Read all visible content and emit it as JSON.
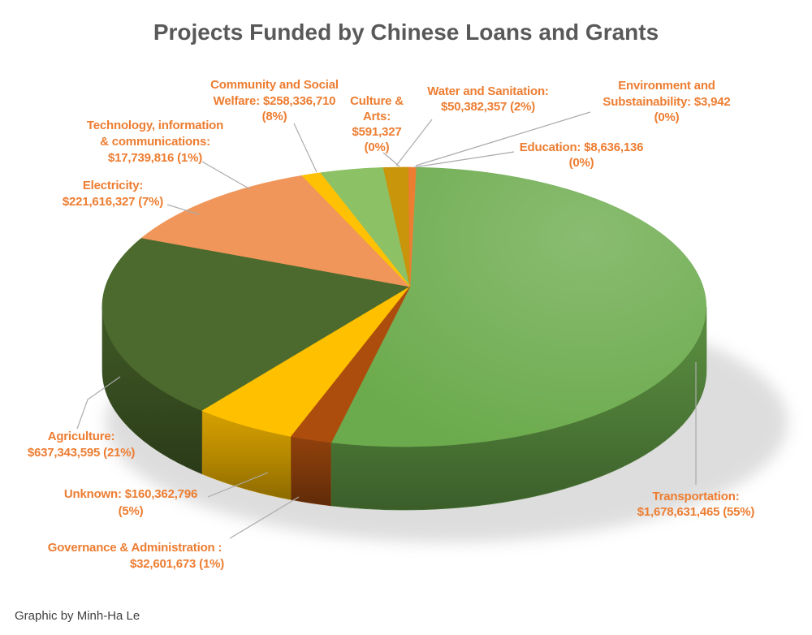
{
  "title": "Projects Funded by Chinese Loans and Grants",
  "credit": "Graphic by Minh-Ha Le",
  "colors": {
    "title_text": "#595959",
    "label_text": "#ED7D31",
    "leader_line": "#ABABAB",
    "credit_text": "#3F3F3F",
    "shadow": "#C8C8C8"
  },
  "chart_data": {
    "type": "pie",
    "style": "3d",
    "title": "Projects Funded by Chinese Loans and Grants",
    "unit": "USD",
    "legend_position": "none",
    "segments": [
      {
        "id": "transportation",
        "name": "Transportation",
        "amount": "$1,678,631,465",
        "value": 1678631465,
        "percent": "55%",
        "color": "#6CAB4D",
        "label_lines": [
          "Transportation:",
          "$1,678,631,465 (55%)"
        ]
      },
      {
        "id": "agriculture",
        "name": "Agriculture",
        "amount": "$637,343,595",
        "value": 637343595,
        "percent": "21%",
        "color": "#4C6A2D",
        "label_lines": [
          "Agriculture:",
          "$637,343,595 (21%)"
        ]
      },
      {
        "id": "community",
        "name": "Community and Social Welfare",
        "amount": "$258,336,710",
        "value": 258336710,
        "percent": "8%",
        "color": "#8DC166",
        "label_lines": [
          "Community and Social",
          "Welfare: $258,336,710",
          "(8%)"
        ]
      },
      {
        "id": "electricity",
        "name": "Electricity",
        "amount": "$221,616,327",
        "value": 221616327,
        "percent": "7%",
        "color": "#F0965A",
        "label_lines": [
          "Electricity:",
          "$221,616,327 (7%)"
        ]
      },
      {
        "id": "unknown",
        "name": "Unknown",
        "amount": "$160,362,796",
        "value": 160362796,
        "percent": "5%",
        "color": "#FFC000",
        "label_lines": [
          "Unknown: $160,362,796",
          "(5%)"
        ]
      },
      {
        "id": "water",
        "name": "Water and Sanitation",
        "amount": "$50,382,357",
        "value": 50382357,
        "percent": "2%",
        "color": "#C8950B",
        "label_lines": [
          "Water and Sanitation:",
          "$50,382,357 (2%)"
        ]
      },
      {
        "id": "governance",
        "name": "Governance & Administration",
        "amount": "$32,601,673",
        "value": 32601673,
        "percent": "1%",
        "color": "#AC4D0E",
        "label_lines": [
          "Governance & Administration :",
          "$32,601,673 (1%)"
        ]
      },
      {
        "id": "technology",
        "name": "Technology, information & communications",
        "amount": "$17,739,816",
        "value": 17739816,
        "percent": "1%",
        "color": "#FFC103",
        "label_lines": [
          "Technology, information",
          "& communications:",
          "$17,739,816 (1%)"
        ]
      },
      {
        "id": "education",
        "name": "Education",
        "amount": "$8,636,136",
        "value": 8636136,
        "percent": "0%",
        "color": "#ED7D31",
        "label_lines": [
          "Education: $8,636,136",
          "(0%)"
        ]
      },
      {
        "id": "culture",
        "name": "Culture & Arts",
        "amount": "$591,327",
        "value": 591327,
        "percent": "0%",
        "color": null,
        "label_lines": [
          "Culture &",
          "Arts:",
          "$591,327",
          "(0%)"
        ]
      },
      {
        "id": "environment",
        "name": "Environment and Substainability",
        "amount": "$3,942",
        "value": 3942,
        "percent": "0%",
        "color": null,
        "label_lines": [
          "Environment and",
          "Substainability: $3,942",
          "(0%)"
        ]
      }
    ]
  }
}
